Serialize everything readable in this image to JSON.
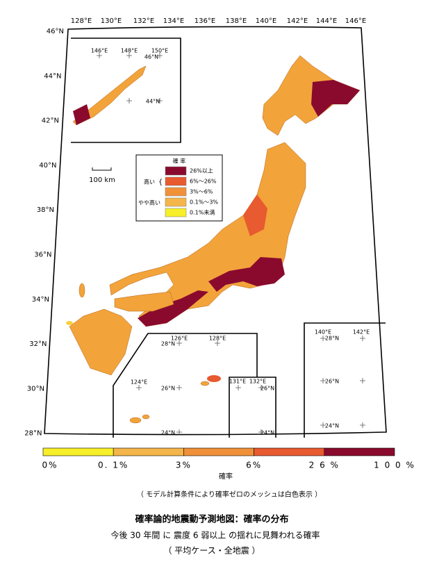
{
  "map": {
    "top_labels": [
      "128°E",
      "130°E",
      "132°E",
      "134°E",
      "136°E",
      "138°E",
      "140°E",
      "142°E",
      "144°E",
      "146°E"
    ],
    "left_labels": [
      "46°N",
      "44°N",
      "42°N",
      "40°N",
      "38°N",
      "36°N",
      "34°N",
      "32°N",
      "30°N",
      "28°N"
    ],
    "inset_north": {
      "labels": [
        "146°E",
        "148°E",
        "150°E",
        "46°N",
        "44°N"
      ]
    },
    "inset_okinawa": {
      "labels": [
        "126°E",
        "128°E",
        "28°N",
        "124°E",
        "26°N",
        "24°N"
      ]
    },
    "inset_daito": {
      "labels": [
        "131°E",
        "132°E",
        "26°N",
        "24°N"
      ]
    },
    "inset_ogasawara": {
      "labels": [
        "140°E",
        "142°E",
        "28°N",
        "26°N",
        "24°N"
      ]
    },
    "scale": "100 km",
    "legend": {
      "title": "確 率",
      "groups": [
        "高い",
        "やや高い"
      ],
      "items": [
        {
          "label": "26%以上",
          "color": "#8a0a2e"
        },
        {
          "label": "6%～26%",
          "color": "#e85a30"
        },
        {
          "label": "3%～6%",
          "color": "#f0913a"
        },
        {
          "label": "0.1%～3%",
          "color": "#f4b64a"
        },
        {
          "label": "0.1%未満",
          "color": "#f7ef2a"
        }
      ]
    }
  },
  "colorbar": {
    "colors": [
      "#f7ef2a",
      "#f4b64a",
      "#f0913a",
      "#e85a30",
      "#8a0a2e"
    ],
    "ticks": [
      "0%",
      "0. 1%",
      "3%",
      "6%",
      "2 6 %",
      "1 0 0 %"
    ],
    "label": "確率"
  },
  "note": "（ モデル計算条件により確率ゼロのメッシュは白色表示 ）",
  "title": "確率論的地震動予測地図：確率の分布",
  "subtitle": "今後 30 年間 に 震度 6 弱以上 の揺れに見舞われる確率",
  "subtitle2": "（ 平均ケース・全地震 ）"
}
